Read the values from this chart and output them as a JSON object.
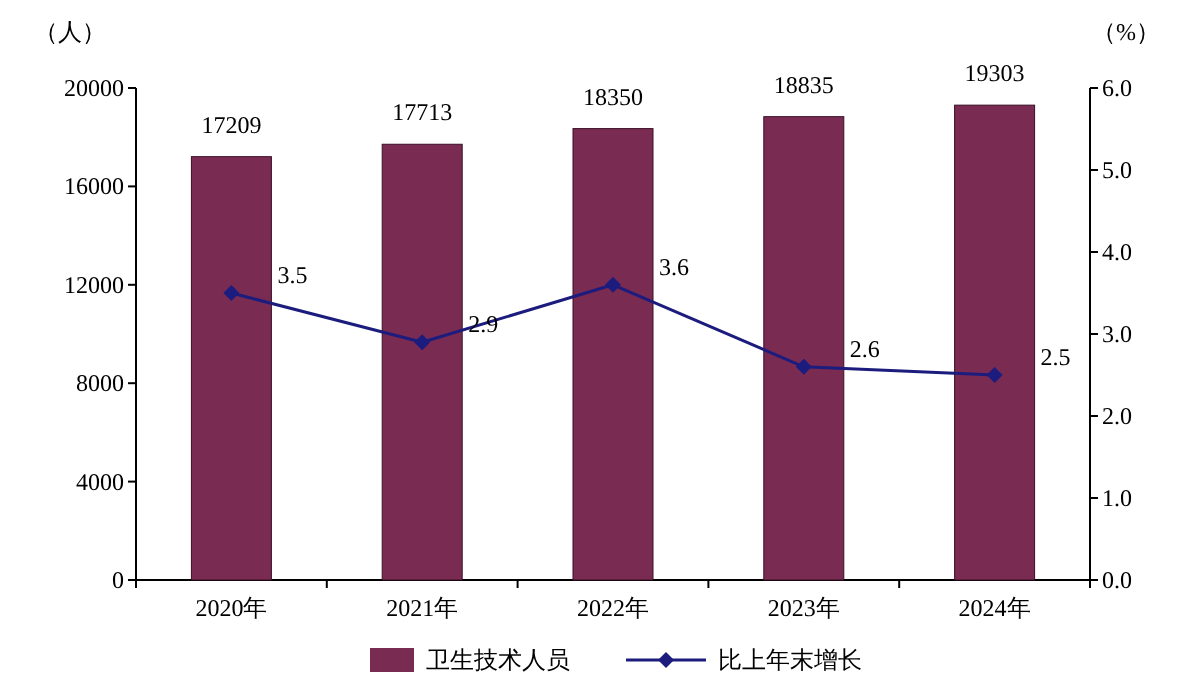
{
  "chart_data": {
    "type": "bar",
    "ylabel": "（人）",
    "y2label": "（%）",
    "categories": [
      "2020年",
      "2021年",
      "2022年",
      "2023年",
      "2024年"
    ],
    "series": [
      {
        "name": "卫生技术人员",
        "color": "#7a2b52",
        "values": [
          17209,
          17713,
          18350,
          18835,
          19303
        ]
      },
      {
        "name": "比上年末增长",
        "type": "line",
        "axis": "y2",
        "color": "#1c1c7e",
        "marker": "diamond",
        "values": [
          3.5,
          2.9,
          3.6,
          2.6,
          2.5
        ]
      }
    ],
    "ylim": [
      0,
      20000
    ],
    "yticks": [
      0,
      4000,
      8000,
      12000,
      16000,
      20000
    ],
    "y2lim": [
      0,
      6
    ],
    "y2ticks": [
      {
        "value": 0,
        "label": "0.0"
      },
      {
        "value": 1,
        "label": "1.0"
      },
      {
        "value": 2,
        "label": "2.0"
      },
      {
        "value": 3,
        "label": "3.0"
      },
      {
        "value": 4,
        "label": "4.0"
      },
      {
        "value": 5,
        "label": "5.0"
      },
      {
        "value": 6,
        "label": "6.0"
      }
    ],
    "data_labels": true,
    "legend": "bottom",
    "grid": false
  }
}
